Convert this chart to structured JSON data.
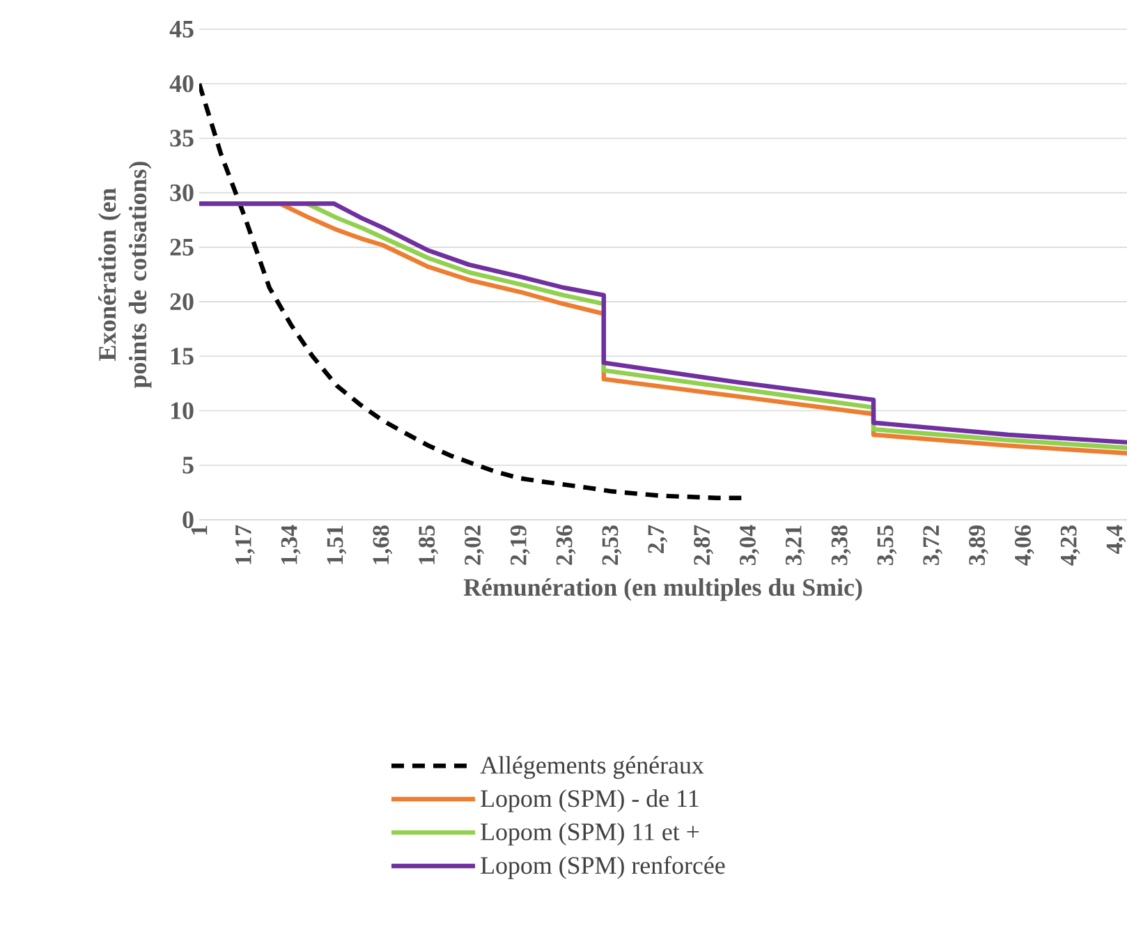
{
  "chart_data": {
    "type": "line",
    "xlabel": "Rémunération (en multiples du Smic)",
    "ylabel": "Exonération (en points de cotisations)",
    "xlim": [
      1,
      4.44
    ],
    "ylim": [
      0,
      45
    ],
    "xticks": [
      1,
      {
        "value": 1.17,
        "label": "1,17"
      },
      {
        "value": 1.34,
        "label": "1,34"
      },
      {
        "value": 1.51,
        "label": "1,51"
      },
      {
        "value": 1.68,
        "label": "1,68"
      },
      {
        "value": 1.85,
        "label": "1,85"
      },
      {
        "value": 2.02,
        "label": "2,02"
      },
      {
        "value": 2.19,
        "label": "2,19"
      },
      {
        "value": 2.36,
        "label": "2,36"
      },
      {
        "value": 2.53,
        "label": "2,53"
      },
      {
        "value": 2.7,
        "label": "2,7"
      },
      {
        "value": 2.87,
        "label": "2,87"
      },
      {
        "value": 3.04,
        "label": "3,04"
      },
      {
        "value": 3.21,
        "label": "3,21"
      },
      {
        "value": 3.38,
        "label": "3,38"
      },
      {
        "value": 3.55,
        "label": "3,55"
      },
      {
        "value": 3.72,
        "label": "3,72"
      },
      {
        "value": 3.89,
        "label": "3,89"
      },
      {
        "value": 4.06,
        "label": "4,06"
      },
      {
        "value": 4.23,
        "label": "4,23"
      },
      {
        "value": 4.4,
        "label": "4,4"
      }
    ],
    "yticks": [
      0,
      5,
      10,
      15,
      20,
      25,
      30,
      35,
      40,
      45
    ],
    "grid": "y",
    "legend": "bottom",
    "series": [
      {
        "name": "Allégements généraux",
        "color": "#000000",
        "line_style": "dashed",
        "x": [
          1,
          1.08,
          1.17,
          1.26,
          1.34,
          1.42,
          1.51,
          1.6,
          1.68,
          1.76,
          1.85,
          1.93,
          2.02,
          2.1,
          2.19,
          2.27,
          2.36,
          2.45,
          2.53,
          2.71,
          2.92,
          3.01
        ],
        "values": [
          40,
          33.6,
          27.7,
          21.3,
          17.9,
          15,
          12.3,
          10.5,
          9.1,
          8,
          6.8,
          5.9,
          5.1,
          4.4,
          3.8,
          3.5,
          3.2,
          2.9,
          2.6,
          2.2,
          2.0,
          2.0
        ]
      },
      {
        "name": "Lopom (SPM) - de 11",
        "color": "#ED7D31",
        "line_style": "solid",
        "x": [
          1,
          1.3,
          1.4,
          1.51,
          1.6,
          1.68,
          1.85,
          2.0,
          2.19,
          2.35,
          2.5,
          2.5,
          3.0,
          3.5,
          3.5,
          4.0,
          4.44
        ],
        "values": [
          29,
          29,
          27.8,
          26.6,
          25.8,
          25.2,
          23.2,
          22.0,
          20.9,
          19.8,
          18.9,
          12.9,
          11.3,
          9.7,
          7.8,
          6.8,
          6.1
        ]
      },
      {
        "name": "Lopom (SPM) 11 et +",
        "color": "#92D050",
        "line_style": "solid",
        "x": [
          1,
          1.4,
          1.51,
          1.6,
          1.68,
          1.85,
          2.0,
          2.19,
          2.35,
          2.5,
          2.5,
          3.0,
          3.5,
          3.5,
          4.0,
          4.44
        ],
        "values": [
          29,
          29,
          27.7,
          26.8,
          25.9,
          24.0,
          22.7,
          21.6,
          20.6,
          19.8,
          13.7,
          12.0,
          10.3,
          8.3,
          7.3,
          6.6
        ]
      },
      {
        "name": "Lopom (SPM) renforcée",
        "color": "#7030A0",
        "line_style": "solid",
        "x": [
          1,
          1.5,
          1.6,
          1.68,
          1.85,
          2.0,
          2.19,
          2.35,
          2.5,
          2.5,
          3.0,
          3.5,
          3.5,
          4.0,
          4.44
        ],
        "values": [
          29,
          29,
          27.7,
          26.8,
          24.7,
          23.4,
          22.3,
          21.3,
          20.6,
          14.4,
          12.6,
          11.0,
          8.9,
          7.8,
          7.1
        ]
      }
    ]
  }
}
